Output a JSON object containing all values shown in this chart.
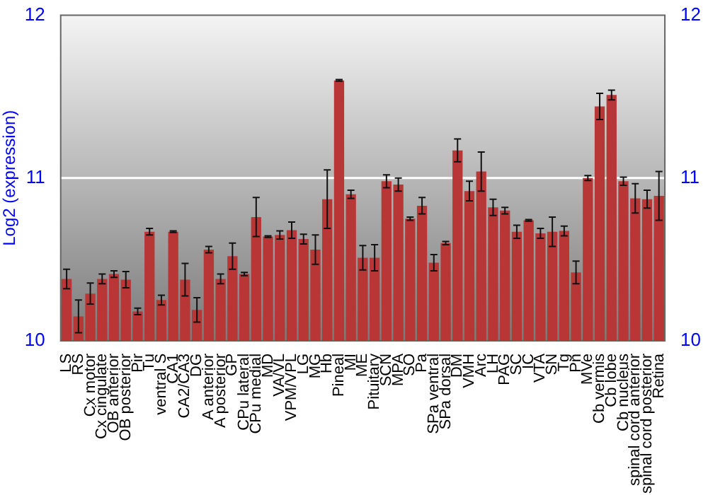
{
  "chart_data": {
    "type": "bar",
    "ylabel": "Log2 (expression)",
    "categories": [
      "LS",
      "RS",
      "Cx motor",
      "Cx cingulate",
      "OB anterior",
      "OB posterior",
      "Pir",
      "Tu",
      "ventral S",
      "CA1",
      "CA2/CA3",
      "DG",
      "A anterior",
      "A posterior",
      "GP",
      "CPu lateral",
      "CPu medial",
      "MD",
      "VA/VL",
      "VPM/VPL",
      "LG",
      "MG",
      "Hb",
      "Pineal",
      "MI",
      "ME",
      "Pituitary",
      "SCN",
      "MPA",
      "SO",
      "Pa",
      "SPa ventral",
      "SPa dorsal",
      "DM",
      "VMH",
      "Arc",
      "LH",
      "PAG",
      "SC",
      "IC",
      "VTA",
      "SN",
      "Tg",
      "Pn",
      "MVe",
      "Cb vermis",
      "Cb lobe",
      "Cb nucleus",
      "spinal cord anterior",
      "spinal cord posterior",
      "Retina"
    ],
    "values": [
      10.38,
      10.15,
      10.29,
      10.38,
      10.41,
      10.375,
      10.18,
      10.67,
      10.25,
      10.67,
      10.375,
      10.19,
      10.56,
      10.38,
      10.52,
      10.41,
      10.76,
      10.64,
      10.65,
      10.68,
      10.625,
      10.56,
      10.87,
      11.6,
      10.9,
      10.51,
      10.51,
      10.98,
      10.96,
      10.75,
      10.83,
      10.48,
      10.6,
      11.17,
      10.92,
      11.04,
      10.82,
      10.8,
      10.67,
      10.74,
      10.66,
      10.67,
      10.675,
      10.42,
      11.0,
      11.44,
      11.51,
      10.98,
      10.875,
      10.87,
      10.89
    ],
    "errors": [
      0.06,
      0.1,
      0.065,
      0.03,
      0.02,
      0.05,
      0.02,
      0.02,
      0.03,
      0.005,
      0.1,
      0.075,
      0.02,
      0.03,
      0.08,
      0.01,
      0.12,
      0.005,
      0.025,
      0.05,
      0.03,
      0.09,
      0.18,
      0.005,
      0.025,
      0.075,
      0.08,
      0.04,
      0.04,
      0.01,
      0.05,
      0.05,
      0.01,
      0.07,
      0.06,
      0.12,
      0.05,
      0.02,
      0.04,
      0.005,
      0.03,
      0.09,
      0.03,
      0.07,
      0.015,
      0.08,
      0.03,
      0.025,
      0.09,
      0.055,
      0.15
    ],
    "color": "#b83636",
    "ylim": [
      10,
      12
    ],
    "yticks": [
      10,
      11,
      12
    ],
    "y2lim": [
      10,
      12
    ],
    "y2ticks": [
      10,
      11,
      12
    ],
    "grid": "y"
  }
}
